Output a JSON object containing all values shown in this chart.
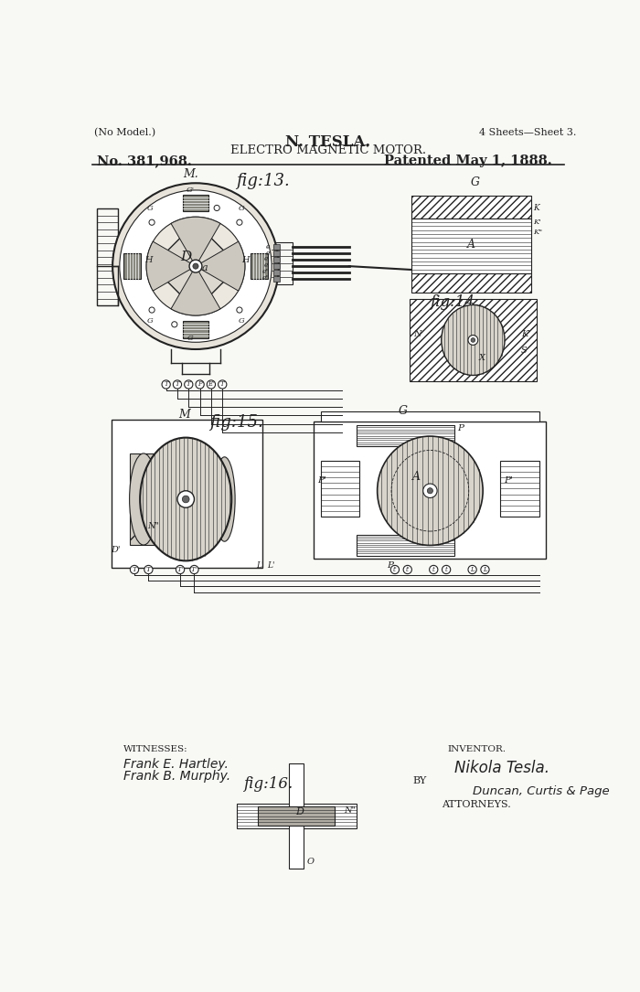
{
  "bg_color": "#f8f8f5",
  "line_color": "#222222",
  "header": {
    "no_model": "(No Model.)",
    "sheets": "4 Sheets—Sheet 3.",
    "inventor_name": "N. TESLA.",
    "title": "ELECTRO MAGNETIC MOTOR.",
    "patent_no": "No. 381,968.",
    "patent_date": "Patented May 1, 1888."
  },
  "footer": {
    "witnesses_label": "WITNESSES:",
    "witness1": "Frank E. Hartley.",
    "witness2": "Frank B. Murphy.",
    "inventor_label": "INVENTOR.",
    "inventor": "Nikola Tesla.",
    "by": "BY",
    "attorneys_firm": "Duncan, Curtis & Page",
    "attorneys_label": "ATTORNEYS."
  }
}
